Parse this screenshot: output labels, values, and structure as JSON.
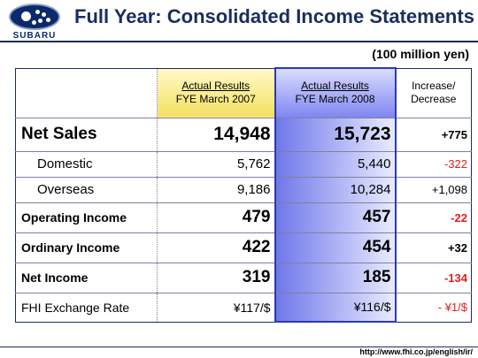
{
  "brand": {
    "name": "SUBARU",
    "accent": "#1a2e5c"
  },
  "title": "Full Year: Consolidated Income Statements",
  "unit": "(100 million yen)",
  "table": {
    "headers": {
      "fy2007": {
        "line1": "Actual Results",
        "line2": "FYE March 2007"
      },
      "fy2008": {
        "line1": "Actual Results",
        "line2": "FYE March 2008"
      },
      "change": {
        "line1": "Increase/",
        "line2": "Decrease"
      }
    },
    "rows": [
      {
        "label": "Net Sales",
        "fy2007": "14,948",
        "fy2008": "15,723",
        "change": "+775"
      },
      {
        "label": "Domestic",
        "fy2007": "5,762",
        "fy2008": "5,440",
        "change": "-322"
      },
      {
        "label": "Overseas",
        "fy2007": "9,186",
        "fy2008": "10,284",
        "change": "+1,098"
      },
      {
        "label": "Operating Income",
        "fy2007": "479",
        "fy2008": "457",
        "change": "-22"
      },
      {
        "label": "Ordinary Income",
        "fy2007": "422",
        "fy2008": "454",
        "change": "+32"
      },
      {
        "label": "Net Income",
        "fy2007": "319",
        "fy2008": "185",
        "change": "-134"
      },
      {
        "label": "FHI Exchange Rate",
        "fy2007": "¥117/$",
        "fy2008": "¥116/$",
        "change": "- ¥1/$"
      }
    ]
  },
  "footer": {
    "url": "http://www.fhi.co.jp/english/ir/"
  },
  "colors": {
    "negative": "#e02020",
    "highlight_2008": "#6f78ea",
    "highlight_2007": "#f3e060"
  }
}
